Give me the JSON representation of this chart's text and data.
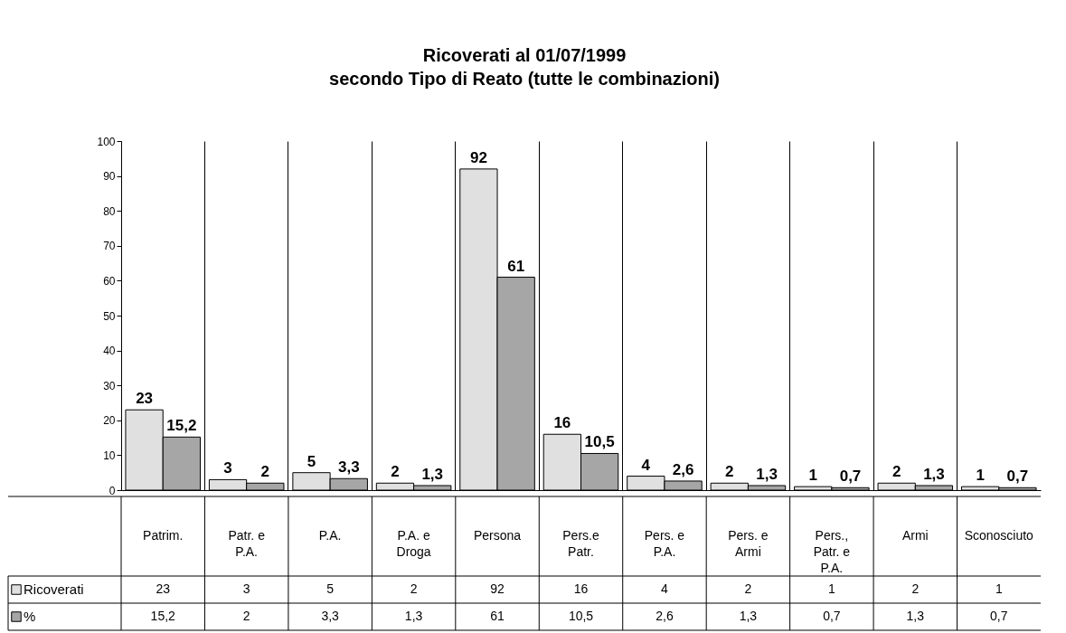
{
  "chart_data": {
    "type": "bar",
    "title": "Ricoverati al 01/07/1999",
    "subtitle": "secondo Tipo di Reato (tutte le combinazioni)",
    "categories": [
      "Patrim.",
      "Patr. e P.A.",
      "P.A.",
      "P.A. e Droga",
      "Persona",
      "Pers.e Patr.",
      "Pers. e P.A.",
      "Pers. e Armi",
      "Pers., Patr. e P.A.",
      "Armi",
      "Sconosciuto"
    ],
    "series": [
      {
        "name": "Ricoverati",
        "color": "#e0e0e0",
        "values": [
          23,
          3,
          5,
          2,
          92,
          16,
          4,
          2,
          1,
          2,
          1
        ],
        "value_labels": [
          "23",
          "3",
          "5",
          "2",
          "92",
          "16",
          "4",
          "2",
          "1",
          "2",
          "1"
        ]
      },
      {
        "name": "%",
        "color": "#a6a6a6",
        "values": [
          15.2,
          2,
          3.3,
          1.3,
          61,
          10.5,
          2.6,
          1.3,
          0.7,
          1.3,
          0.7
        ],
        "value_labels": [
          "15,2",
          "2",
          "3,3",
          "1,3",
          "61",
          "10,5",
          "2,6",
          "1,3",
          "0,7",
          "1,3",
          "0,7"
        ]
      }
    ],
    "ylim": [
      0,
      100
    ],
    "yticks": [
      0,
      10,
      20,
      30,
      40,
      50,
      60,
      70,
      80,
      90,
      100
    ],
    "grid": "x",
    "legend": "bottom left",
    "data_labels": true
  }
}
